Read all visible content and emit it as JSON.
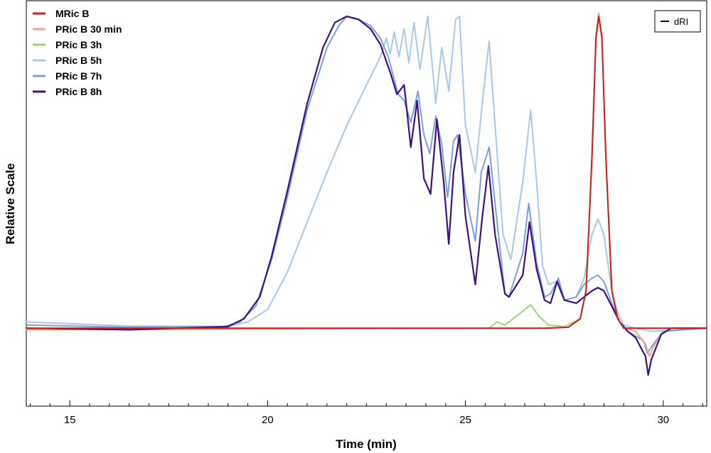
{
  "chart_data": {
    "type": "line",
    "xlabel": "Time (min)",
    "ylabel": "Relative Scale",
    "xlim": [
      13.9,
      31.1
    ],
    "ylim": [
      -0.25,
      1.05
    ],
    "x_ticks": [
      15,
      20,
      25,
      30
    ],
    "y_ticks_shown": false,
    "grid": false,
    "legend_position": "top-left",
    "detector_legend": {
      "label": "dRI",
      "position": "top-right"
    },
    "series": [
      {
        "name": "MRic B",
        "color": "#cc1f1a",
        "points": [
          [
            13.9,
            0
          ],
          [
            27.0,
            0
          ],
          [
            27.6,
            0.003
          ],
          [
            27.9,
            0.03
          ],
          [
            28.05,
            0.12
          ],
          [
            28.2,
            0.55
          ],
          [
            28.3,
            0.93
          ],
          [
            28.37,
            1.0
          ],
          [
            28.45,
            0.93
          ],
          [
            28.55,
            0.55
          ],
          [
            28.7,
            0.12
          ],
          [
            28.85,
            0.03
          ],
          [
            29.0,
            0
          ],
          [
            31.1,
            0
          ]
        ]
      },
      {
        "name": "PRic B 30 min",
        "color": "#f4a582",
        "points": [
          [
            13.9,
            -0.005
          ],
          [
            27.0,
            0
          ],
          [
            27.6,
            0.003
          ],
          [
            27.9,
            0.03
          ],
          [
            28.05,
            0.12
          ],
          [
            28.2,
            0.55
          ],
          [
            28.3,
            0.94
          ],
          [
            28.37,
            1.01
          ],
          [
            28.45,
            0.94
          ],
          [
            28.55,
            0.55
          ],
          [
            28.7,
            0.12
          ],
          [
            28.85,
            0.03
          ],
          [
            29.0,
            0
          ],
          [
            29.3,
            -0.01
          ],
          [
            29.55,
            -0.05
          ],
          [
            29.65,
            -0.09
          ],
          [
            29.75,
            -0.06
          ],
          [
            29.95,
            -0.02
          ],
          [
            30.2,
            0
          ],
          [
            31.1,
            0
          ]
        ]
      },
      {
        "name": "PRic B 3h",
        "color": "#9dcf84",
        "points": [
          [
            13.9,
            0
          ],
          [
            25.6,
            0
          ],
          [
            25.8,
            0.02
          ],
          [
            26.0,
            0.01
          ],
          [
            26.2,
            0.03
          ],
          [
            26.4,
            0.05
          ],
          [
            26.65,
            0.075
          ],
          [
            26.85,
            0.04
          ],
          [
            27.1,
            0.01
          ],
          [
            27.5,
            0.005
          ],
          [
            27.9,
            0.03
          ],
          [
            28.05,
            0.12
          ],
          [
            28.2,
            0.55
          ],
          [
            28.3,
            0.93
          ],
          [
            28.37,
            1.0
          ],
          [
            28.45,
            0.93
          ],
          [
            28.55,
            0.55
          ],
          [
            28.7,
            0.12
          ],
          [
            28.85,
            0.03
          ],
          [
            29.0,
            0
          ],
          [
            31.1,
            0
          ]
        ]
      },
      {
        "name": "PRic B 5h",
        "color": "#a8c8ea",
        "points": [
          [
            13.9,
            0.02
          ],
          [
            16.5,
            0.007
          ],
          [
            19.0,
            0.006
          ],
          [
            19.5,
            0.02
          ],
          [
            20.0,
            0.06
          ],
          [
            20.5,
            0.18
          ],
          [
            21.0,
            0.34
          ],
          [
            21.5,
            0.5
          ],
          [
            22.0,
            0.65
          ],
          [
            22.5,
            0.78
          ],
          [
            22.85,
            0.87
          ],
          [
            23.0,
            0.93
          ],
          [
            23.1,
            0.88
          ],
          [
            23.2,
            0.95
          ],
          [
            23.32,
            0.87
          ],
          [
            23.45,
            0.96
          ],
          [
            23.57,
            0.85
          ],
          [
            23.7,
            0.98
          ],
          [
            23.85,
            0.83
          ],
          [
            24.05,
            1.0
          ],
          [
            24.25,
            0.72
          ],
          [
            24.4,
            0.9
          ],
          [
            24.58,
            0.76
          ],
          [
            24.75,
            0.99
          ],
          [
            24.85,
            1.0
          ],
          [
            25.0,
            0.65
          ],
          [
            25.25,
            0.5
          ],
          [
            25.45,
            0.75
          ],
          [
            25.6,
            0.92
          ],
          [
            25.75,
            0.65
          ],
          [
            25.95,
            0.3
          ],
          [
            26.15,
            0.22
          ],
          [
            26.45,
            0.47
          ],
          [
            26.65,
            0.7
          ],
          [
            26.8,
            0.47
          ],
          [
            26.95,
            0.2
          ],
          [
            27.1,
            0.14
          ],
          [
            27.3,
            0.15
          ],
          [
            27.5,
            0.09
          ],
          [
            27.8,
            0.1
          ],
          [
            28.0,
            0.16
          ],
          [
            28.2,
            0.3
          ],
          [
            28.35,
            0.35
          ],
          [
            28.5,
            0.3
          ],
          [
            28.7,
            0.12
          ],
          [
            28.85,
            0.05
          ],
          [
            29.0,
            0.01
          ],
          [
            29.3,
            0
          ],
          [
            29.7,
            -0.01
          ],
          [
            31.1,
            0
          ]
        ]
      },
      {
        "name": "PRic B 7h",
        "color": "#7b9fd8",
        "points": [
          [
            13.9,
            0.01
          ],
          [
            16.5,
            0.003
          ],
          [
            18.9,
            0.005
          ],
          [
            19.3,
            0.02
          ],
          [
            19.7,
            0.07
          ],
          [
            20.1,
            0.22
          ],
          [
            20.5,
            0.42
          ],
          [
            21.0,
            0.7
          ],
          [
            21.5,
            0.9
          ],
          [
            21.8,
            0.97
          ],
          [
            22.0,
            1.0
          ],
          [
            22.3,
            0.99
          ],
          [
            22.6,
            0.97
          ],
          [
            22.85,
            0.93
          ],
          [
            23.05,
            0.87
          ],
          [
            23.3,
            0.75
          ],
          [
            23.45,
            0.73
          ],
          [
            23.62,
            0.66
          ],
          [
            23.8,
            0.76
          ],
          [
            23.95,
            0.62
          ],
          [
            24.1,
            0.56
          ],
          [
            24.25,
            0.68
          ],
          [
            24.4,
            0.59
          ],
          [
            24.55,
            0.42
          ],
          [
            24.7,
            0.6
          ],
          [
            24.8,
            0.62
          ],
          [
            25.0,
            0.43
          ],
          [
            25.25,
            0.28
          ],
          [
            25.4,
            0.5
          ],
          [
            25.6,
            0.58
          ],
          [
            25.75,
            0.4
          ],
          [
            26.0,
            0.11
          ],
          [
            26.1,
            0.1
          ],
          [
            26.45,
            0.24
          ],
          [
            26.6,
            0.4
          ],
          [
            26.8,
            0.21
          ],
          [
            27.0,
            0.1
          ],
          [
            27.15,
            0.11
          ],
          [
            27.35,
            0.16
          ],
          [
            27.5,
            0.09
          ],
          [
            27.8,
            0.1
          ],
          [
            28.0,
            0.14
          ],
          [
            28.2,
            0.16
          ],
          [
            28.35,
            0.17
          ],
          [
            28.5,
            0.15
          ],
          [
            28.7,
            0.08
          ],
          [
            28.9,
            0.02
          ],
          [
            29.1,
            -0.01
          ],
          [
            29.5,
            -0.04
          ],
          [
            29.6,
            -0.08
          ],
          [
            29.7,
            -0.06
          ],
          [
            30.0,
            -0.01
          ],
          [
            31.1,
            0
          ]
        ]
      },
      {
        "name": "PRic B 8h",
        "color": "#3d0f85",
        "points": [
          [
            13.9,
            0
          ],
          [
            16.5,
            -0.005
          ],
          [
            19.0,
            0.005
          ],
          [
            19.4,
            0.03
          ],
          [
            19.8,
            0.1
          ],
          [
            20.1,
            0.23
          ],
          [
            20.5,
            0.44
          ],
          [
            21.0,
            0.72
          ],
          [
            21.4,
            0.9
          ],
          [
            21.7,
            0.98
          ],
          [
            22.0,
            1.0
          ],
          [
            22.3,
            0.99
          ],
          [
            22.6,
            0.96
          ],
          [
            22.85,
            0.91
          ],
          [
            23.1,
            0.82
          ],
          [
            23.27,
            0.75
          ],
          [
            23.45,
            0.78
          ],
          [
            23.62,
            0.58
          ],
          [
            23.78,
            0.73
          ],
          [
            23.95,
            0.48
          ],
          [
            24.12,
            0.43
          ],
          [
            24.28,
            0.67
          ],
          [
            24.45,
            0.47
          ],
          [
            24.58,
            0.27
          ],
          [
            24.7,
            0.5
          ],
          [
            24.85,
            0.62
          ],
          [
            25.0,
            0.36
          ],
          [
            25.25,
            0.14
          ],
          [
            25.43,
            0.36
          ],
          [
            25.58,
            0.52
          ],
          [
            25.75,
            0.3
          ],
          [
            26.0,
            0.11
          ],
          [
            26.1,
            0.1
          ],
          [
            26.45,
            0.17
          ],
          [
            26.62,
            0.34
          ],
          [
            26.8,
            0.19
          ],
          [
            27.0,
            0.09
          ],
          [
            27.15,
            0.08
          ],
          [
            27.32,
            0.15
          ],
          [
            27.5,
            0.09
          ],
          [
            27.8,
            0.08
          ],
          [
            28.0,
            0.1
          ],
          [
            28.2,
            0.12
          ],
          [
            28.35,
            0.13
          ],
          [
            28.5,
            0.12
          ],
          [
            28.7,
            0.07
          ],
          [
            28.9,
            0.02
          ],
          [
            29.1,
            -0.01
          ],
          [
            29.3,
            -0.03
          ],
          [
            29.55,
            -0.09
          ],
          [
            29.62,
            -0.15
          ],
          [
            29.7,
            -0.1
          ],
          [
            29.95,
            -0.02
          ],
          [
            30.2,
            0
          ],
          [
            31.1,
            0
          ]
        ]
      }
    ]
  }
}
